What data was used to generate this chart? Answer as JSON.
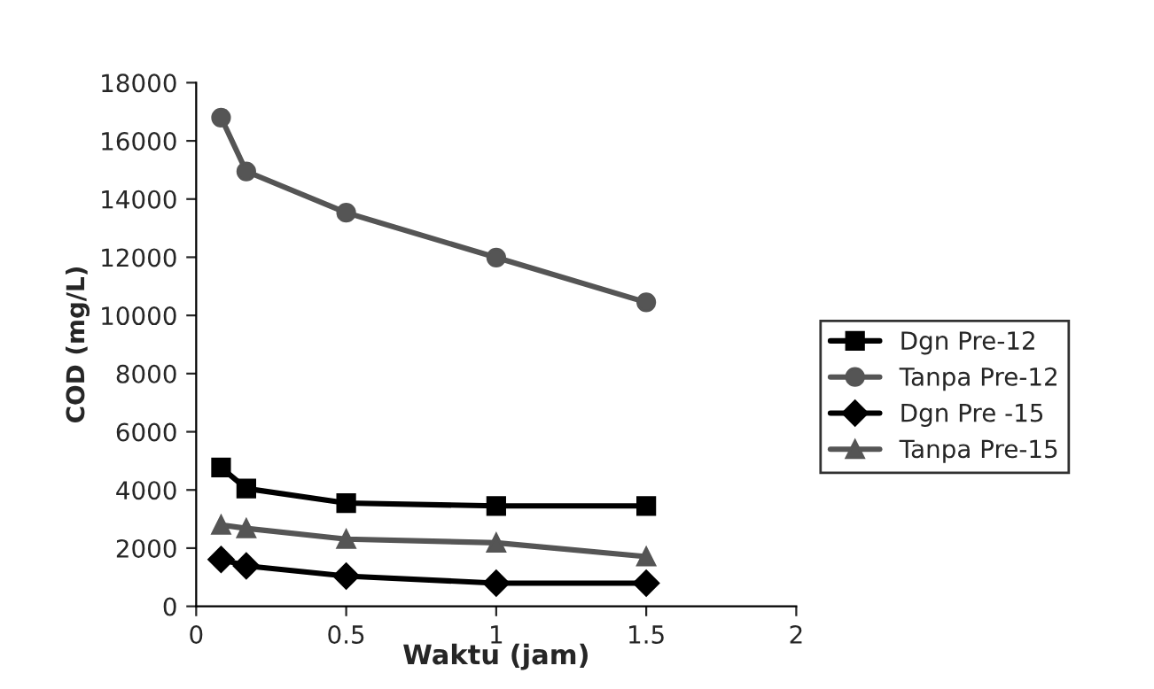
{
  "chart_data": {
    "type": "line",
    "xlabel": "Waktu (jam)",
    "ylabel": "COD (mg/L)",
    "x": [
      0.083,
      0.167,
      0.5,
      1,
      1.5
    ],
    "series": [
      {
        "name": "Dgn Pre-12",
        "color": "#000000",
        "marker": "square",
        "values": [
          4770,
          4050,
          3550,
          3450,
          3450
        ]
      },
      {
        "name": "Tanpa Pre-12",
        "color": "#555555",
        "marker": "circle",
        "values": [
          16800,
          14950,
          13530,
          11990,
          10450
        ]
      },
      {
        "name": "Dgn Pre -15",
        "color": "#000000",
        "marker": "diamond",
        "values": [
          1610,
          1390,
          1040,
          795,
          795
        ]
      },
      {
        "name": "Tanpa Pre-15",
        "color": "#555555",
        "marker": "triangle",
        "values": [
          2800,
          2680,
          2310,
          2185,
          1710
        ]
      }
    ],
    "xlim": [
      0,
      2
    ],
    "xticks": [
      0,
      0.5,
      1,
      1.5,
      2
    ],
    "ylim": [
      0,
      18000
    ],
    "yticks": [
      0,
      2000,
      4000,
      6000,
      8000,
      10000,
      12000,
      14000,
      16000,
      18000
    ],
    "grid": false,
    "legend": "right"
  }
}
